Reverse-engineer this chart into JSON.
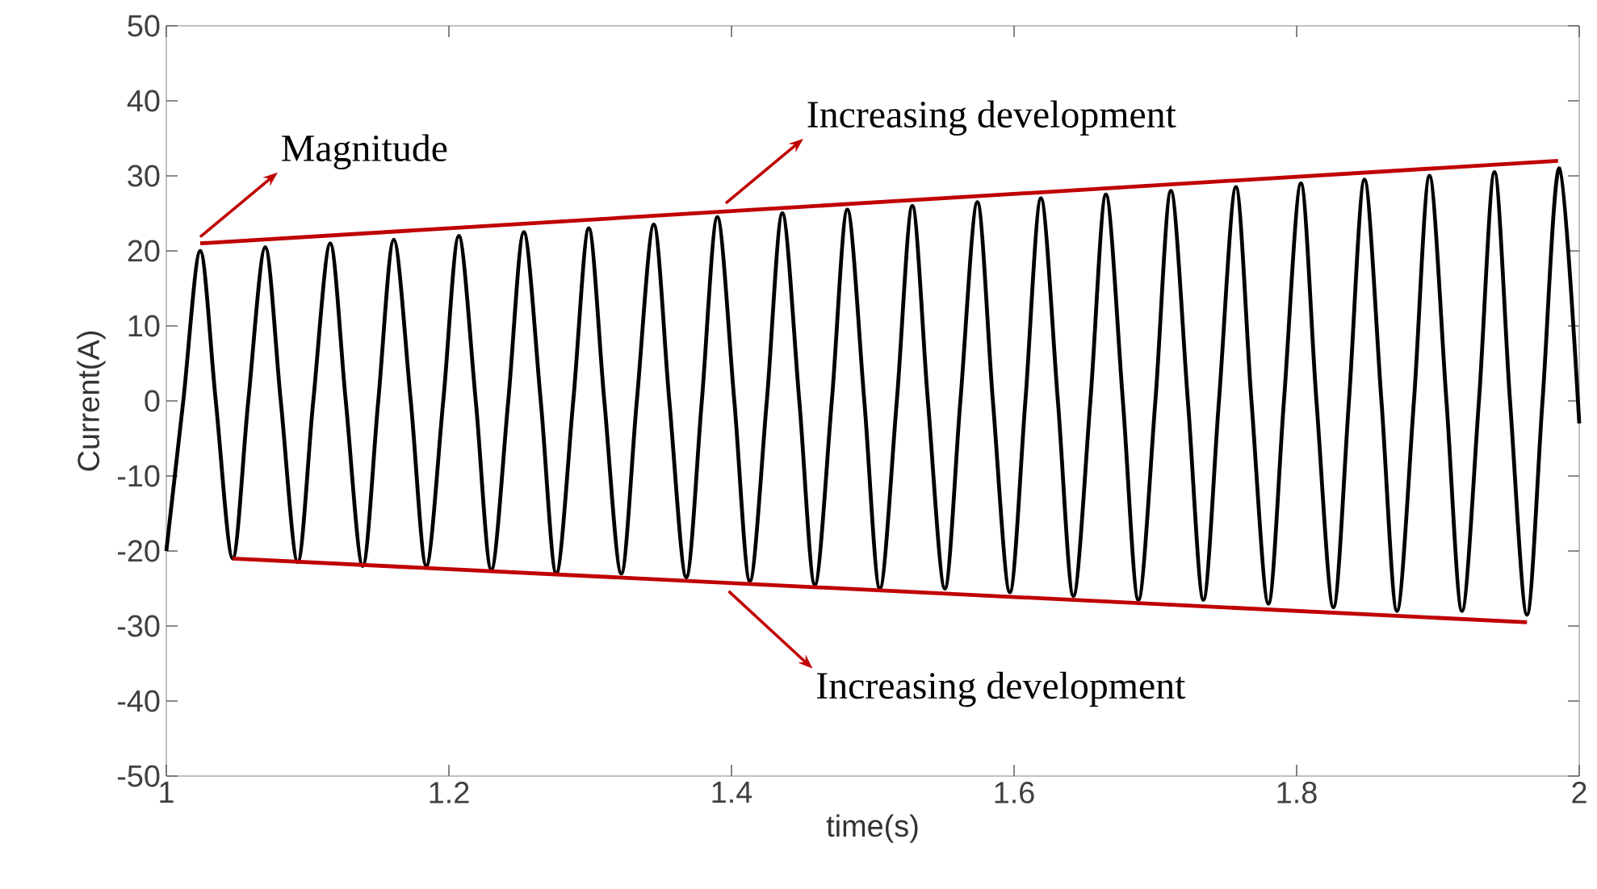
{
  "chart_data": {
    "type": "line",
    "xlabel": "time(s)",
    "ylabel": "Current(A)",
    "xlim": [
      1,
      2
    ],
    "xticks": [
      1,
      1.2,
      1.4,
      1.6,
      1.8,
      2
    ],
    "ylim": [
      -50,
      50
    ],
    "yticks": [
      -50,
      -40,
      -30,
      -20,
      -10,
      0,
      10,
      20,
      30,
      40,
      50
    ],
    "marker": "none",
    "line_style": "solid",
    "series": [
      {
        "color": "#000000",
        "x": [
          1.0,
          1.012,
          1.024,
          1.035,
          1.047,
          1.058,
          1.07,
          1.081,
          1.093,
          1.104,
          1.116,
          1.127,
          1.139,
          1.15,
          1.161,
          1.173,
          1.184,
          1.196,
          1.207,
          1.219,
          1.23,
          1.242,
          1.253,
          1.265,
          1.276,
          1.288,
          1.299,
          1.31,
          1.322,
          1.333,
          1.345,
          1.356,
          1.368,
          1.379,
          1.39,
          1.402,
          1.413,
          1.425,
          1.436,
          1.448,
          1.459,
          1.471,
          1.482,
          1.494,
          1.505,
          1.517,
          1.528,
          1.539,
          1.551,
          1.562,
          1.574,
          1.585,
          1.597,
          1.608,
          1.619,
          1.631,
          1.642,
          1.654,
          1.665,
          1.677,
          1.688,
          1.7,
          1.711,
          1.723,
          1.734,
          1.745,
          1.757,
          1.768,
          1.78,
          1.791,
          1.803,
          1.814,
          1.826,
          1.837,
          1.848,
          1.86,
          1.871,
          1.883,
          1.894,
          1.906,
          1.917,
          1.929,
          1.94,
          1.951,
          1.963,
          1.974,
          1.986,
          2.0
        ],
        "values": [
          -20,
          0,
          20,
          0,
          -21,
          0,
          20.5,
          0,
          -21.5,
          0,
          21,
          0,
          -22,
          0,
          21.5,
          0,
          -22,
          0,
          22,
          0,
          -22.5,
          0,
          22.5,
          0,
          -23,
          0,
          23,
          0,
          -23,
          0,
          23.5,
          0,
          -23.5,
          0,
          24.5,
          0,
          -24,
          0,
          25,
          0,
          -24.5,
          0,
          25.5,
          0,
          -25,
          0,
          26,
          0,
          -25,
          0,
          26.5,
          0,
          -25.5,
          0,
          27,
          0,
          -26,
          0,
          27.5,
          0,
          -26.5,
          0,
          28,
          0,
          -26.5,
          0,
          28.5,
          0,
          -27,
          0,
          29,
          0,
          -27.5,
          0,
          29.5,
          0,
          -28,
          0,
          30,
          0,
          -28,
          0,
          30.5,
          0,
          -28.5,
          0,
          31,
          -3
        ]
      },
      {
        "color": "#c00000",
        "x": [
          1.024,
          1.985
        ],
        "values": [
          21,
          32
        ]
      },
      {
        "color": "#c00000",
        "x": [
          1.047,
          1.963
        ],
        "values": [
          -21,
          -29.5
        ]
      }
    ],
    "annotations": [
      {
        "text": "Magnitude",
        "x": 1.024,
        "y": 21
      },
      {
        "text": "Increasing development",
        "x": 1.396,
        "y": 25.5
      },
      {
        "text": "Increasing development",
        "x": 1.398,
        "y": -24.5
      }
    ]
  }
}
